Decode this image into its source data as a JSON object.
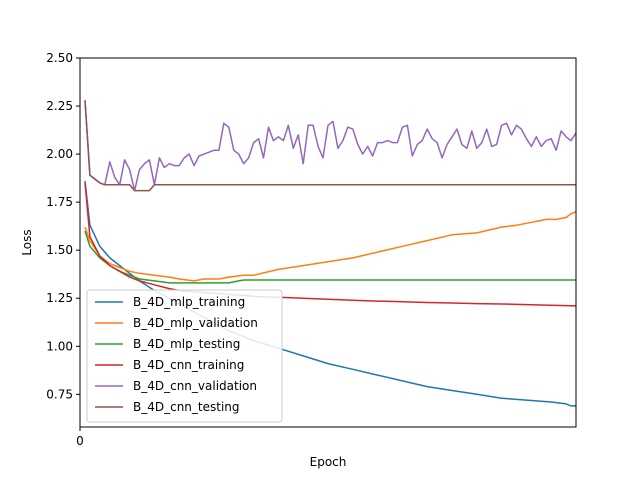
{
  "chart_data": {
    "type": "line",
    "title": "",
    "xlabel": "Epoch",
    "ylabel": "Loss",
    "xlim": [
      0,
      100
    ],
    "ylim": [
      0.58,
      2.5
    ],
    "xticks": [
      0
    ],
    "yticks": [
      0.75,
      1.0,
      1.25,
      1.5,
      1.75,
      2.0,
      2.25,
      2.5
    ],
    "grid": false,
    "legend": "lower-left",
    "series": [
      {
        "name": "B_4D_mlp_training",
        "color": "#1f77b4",
        "x": [
          1,
          2,
          4,
          6,
          8,
          10,
          12,
          15,
          18,
          20,
          25,
          30,
          35,
          40,
          45,
          50,
          55,
          60,
          65,
          70,
          75,
          80,
          85,
          90,
          95,
          98,
          99,
          100
        ],
        "values": [
          1.86,
          1.63,
          1.52,
          1.46,
          1.42,
          1.38,
          1.34,
          1.29,
          1.25,
          1.22,
          1.15,
          1.08,
          1.03,
          0.99,
          0.95,
          0.91,
          0.88,
          0.85,
          0.82,
          0.79,
          0.77,
          0.75,
          0.73,
          0.72,
          0.71,
          0.7,
          0.69,
          0.69
        ]
      },
      {
        "name": "B_4D_mlp_validation",
        "color": "#ff7f0e",
        "x": [
          1,
          2,
          4,
          6,
          8,
          10,
          12,
          15,
          18,
          20,
          23,
          25,
          28,
          30,
          33,
          35,
          40,
          45,
          50,
          55,
          60,
          65,
          70,
          75,
          80,
          85,
          88,
          90,
          92,
          94,
          96,
          98,
          99,
          100
        ],
        "values": [
          1.62,
          1.55,
          1.47,
          1.43,
          1.41,
          1.39,
          1.38,
          1.37,
          1.36,
          1.35,
          1.34,
          1.35,
          1.35,
          1.36,
          1.37,
          1.37,
          1.4,
          1.42,
          1.44,
          1.46,
          1.49,
          1.52,
          1.55,
          1.58,
          1.59,
          1.62,
          1.63,
          1.64,
          1.65,
          1.66,
          1.66,
          1.67,
          1.69,
          1.7
        ]
      },
      {
        "name": "B_4D_mlp_testing",
        "color": "#2ca02c",
        "x": [
          1,
          2,
          4,
          6,
          8,
          10,
          12,
          15,
          18,
          20,
          25,
          30,
          32,
          33,
          35,
          40,
          50,
          60,
          70,
          80,
          90,
          100
        ],
        "values": [
          1.6,
          1.52,
          1.46,
          1.42,
          1.39,
          1.37,
          1.35,
          1.34,
          1.33,
          1.33,
          1.33,
          1.33,
          1.34,
          1.345,
          1.345,
          1.345,
          1.345,
          1.345,
          1.345,
          1.345,
          1.345,
          1.345
        ]
      },
      {
        "name": "B_4D_cnn_training",
        "color": "#d62728",
        "x": [
          1,
          2,
          4,
          6,
          8,
          10,
          12,
          15,
          18,
          20,
          25,
          30,
          35,
          40,
          45,
          50,
          55,
          60,
          65,
          70,
          75,
          80,
          85,
          90,
          95,
          100
        ],
        "values": [
          1.85,
          1.57,
          1.47,
          1.42,
          1.39,
          1.36,
          1.34,
          1.32,
          1.3,
          1.29,
          1.28,
          1.27,
          1.26,
          1.255,
          1.25,
          1.245,
          1.24,
          1.235,
          1.232,
          1.228,
          1.225,
          1.222,
          1.22,
          1.217,
          1.213,
          1.21
        ]
      },
      {
        "name": "B_4D_cnn_validation",
        "color": "#9467bd",
        "x": [
          1,
          2,
          3,
          4,
          5,
          6,
          7,
          8,
          9,
          10,
          11,
          12,
          13,
          14,
          15,
          16,
          17,
          18,
          19,
          20,
          21,
          22,
          23,
          24,
          25,
          26,
          27,
          28,
          29,
          30,
          31,
          32,
          33,
          34,
          35,
          36,
          37,
          38,
          39,
          40,
          41,
          42,
          43,
          44,
          45,
          46,
          47,
          48,
          49,
          50,
          51,
          52,
          53,
          54,
          55,
          56,
          57,
          58,
          59,
          60,
          61,
          62,
          63,
          64,
          65,
          66,
          67,
          68,
          69,
          70,
          71,
          72,
          73,
          74,
          75,
          76,
          77,
          78,
          79,
          80,
          81,
          82,
          83,
          84,
          85,
          86,
          87,
          88,
          89,
          90,
          91,
          92,
          93,
          94,
          95,
          96,
          97,
          98,
          99,
          100
        ],
        "values": [
          2.28,
          1.89,
          1.87,
          1.85,
          1.84,
          1.96,
          1.88,
          1.84,
          1.97,
          1.92,
          1.81,
          1.92,
          1.95,
          1.97,
          1.84,
          1.98,
          1.93,
          1.95,
          1.94,
          1.94,
          1.98,
          2.0,
          1.94,
          1.99,
          2.0,
          2.01,
          2.02,
          2.02,
          2.16,
          2.14,
          2.02,
          2.0,
          1.95,
          1.98,
          2.06,
          2.08,
          1.98,
          2.14,
          2.07,
          2.09,
          2.07,
          2.15,
          2.03,
          2.1,
          1.95,
          2.15,
          2.15,
          2.04,
          1.98,
          2.15,
          2.17,
          2.03,
          2.07,
          2.14,
          2.13,
          2.05,
          2.0,
          2.04,
          1.99,
          2.06,
          2.06,
          2.07,
          2.06,
          2.06,
          2.14,
          2.15,
          1.99,
          2.05,
          2.07,
          2.13,
          2.08,
          2.06,
          1.98,
          2.05,
          2.09,
          2.13,
          2.05,
          2.03,
          2.12,
          2.03,
          2.06,
          2.13,
          2.04,
          2.05,
          2.15,
          2.16,
          2.1,
          2.15,
          2.13,
          2.08,
          2.04,
          2.09,
          2.04,
          2.07,
          2.08,
          2.02,
          2.12,
          2.09,
          2.07,
          2.11
        ]
      },
      {
        "name": "B_4D_cnn_testing",
        "color": "#8c564b",
        "x": [
          1,
          2,
          3,
          4,
          5,
          6,
          7,
          8,
          9,
          10,
          11,
          12,
          13,
          14,
          15,
          16,
          20,
          30,
          40,
          50,
          60,
          70,
          80,
          90,
          100
        ],
        "values": [
          2.28,
          1.89,
          1.87,
          1.85,
          1.84,
          1.84,
          1.84,
          1.84,
          1.84,
          1.84,
          1.81,
          1.81,
          1.81,
          1.81,
          1.84,
          1.84,
          1.84,
          1.84,
          1.84,
          1.84,
          1.84,
          1.84,
          1.84,
          1.84,
          1.84
        ]
      }
    ]
  }
}
